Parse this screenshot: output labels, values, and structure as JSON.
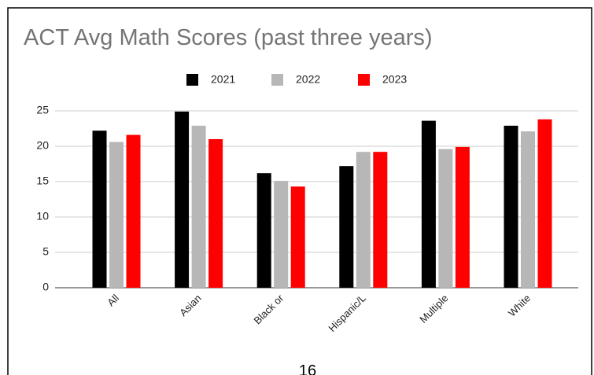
{
  "chart_data": {
    "type": "bar",
    "title": "ACT Avg Math Scores (past three years)",
    "categories": [
      "All",
      "Asian",
      "Black or",
      "Hispanic/L",
      "Multiple",
      "White"
    ],
    "series": [
      {
        "name": "2021",
        "color": "#000000",
        "values": [
          22.2,
          24.9,
          16.2,
          17.2,
          23.6,
          22.9
        ]
      },
      {
        "name": "2022",
        "color": "#b7b7b7",
        "values": [
          20.6,
          22.9,
          15.1,
          19.2,
          19.6,
          22.1
        ]
      },
      {
        "name": "2023",
        "color": "#ff0000",
        "values": [
          21.6,
          21.0,
          14.3,
          19.2,
          19.9,
          23.8
        ]
      }
    ],
    "ylim": [
      0,
      25
    ],
    "yticks": [
      0,
      5,
      10,
      15,
      20,
      25
    ],
    "grid": true,
    "legend": "top"
  },
  "page_number": "16"
}
